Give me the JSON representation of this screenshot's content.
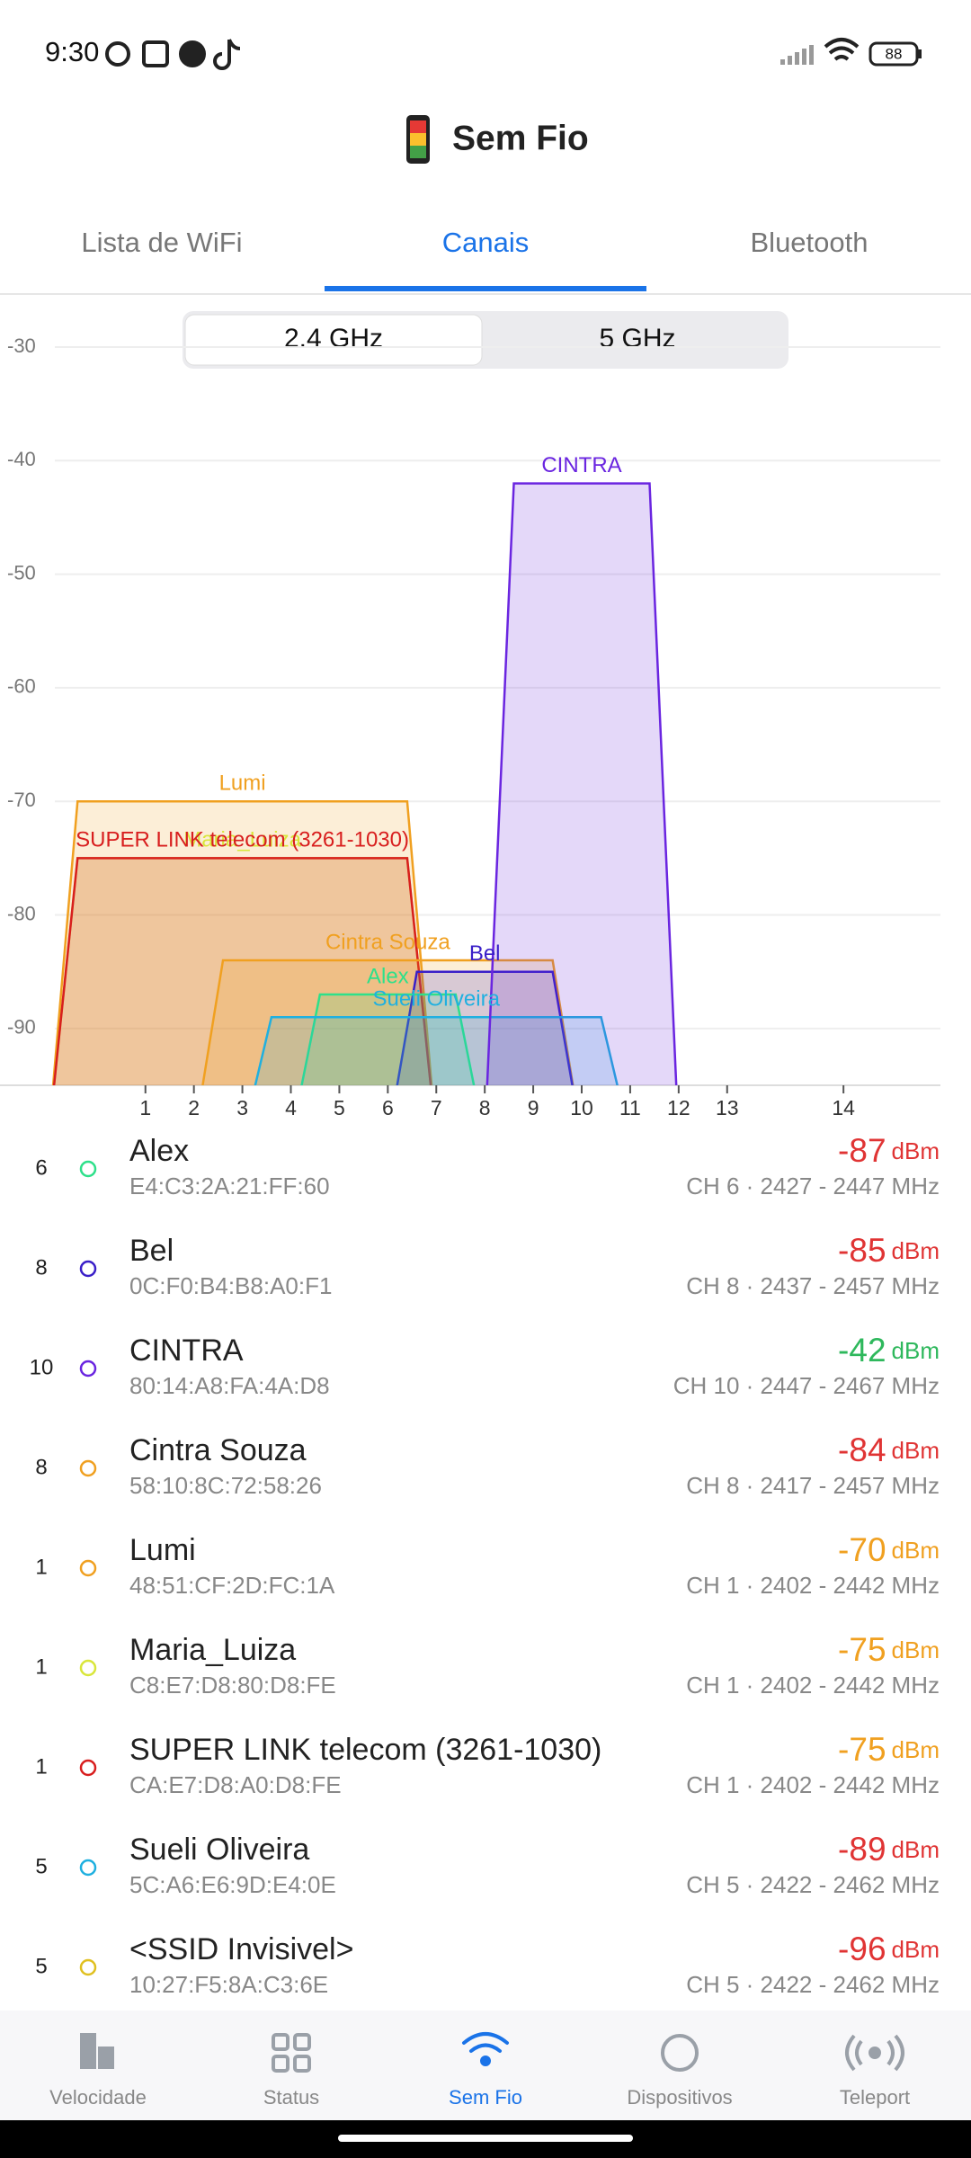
{
  "status_bar": {
    "time": "9:30",
    "battery": "88"
  },
  "app_title": "Sem Fio",
  "tabs": [
    "Lista de WiFi",
    "Canais",
    "Bluetooth"
  ],
  "active_tab": 1,
  "band_options": [
    "2.4 GHz",
    "5 GHz"
  ],
  "active_band": 0,
  "chart_data": {
    "type": "area",
    "xlim": [
      2397,
      2494
    ],
    "ylim": [
      -95,
      -30
    ],
    "yticks": [
      -30,
      -40,
      -50,
      -60,
      -70,
      -80,
      -90
    ],
    "xticks": [
      {
        "value": 2412,
        "label": "1"
      },
      {
        "value": 2417,
        "label": "2"
      },
      {
        "value": 2422,
        "label": "3"
      },
      {
        "value": 2427,
        "label": "4"
      },
      {
        "value": 2432,
        "label": "5"
      },
      {
        "value": 2437,
        "label": "6"
      },
      {
        "value": 2442,
        "label": "7"
      },
      {
        "value": 2447,
        "label": "8"
      },
      {
        "value": 2452,
        "label": "9"
      },
      {
        "value": 2457,
        "label": "10"
      },
      {
        "value": 2462,
        "label": "11"
      },
      {
        "value": 2467,
        "label": "12"
      },
      {
        "value": 2472,
        "label": "13"
      },
      {
        "value": 2484,
        "label": "14"
      }
    ],
    "grid": true,
    "series": [
      {
        "name": "Lumi",
        "color": "#f0a020",
        "value": -70,
        "x_range": [
          2402,
          2442
        ]
      },
      {
        "name": "Maria_Luiza",
        "color": "#d9e63a",
        "value": -75,
        "x_range": [
          2402,
          2442
        ]
      },
      {
        "name": "SUPER LINK telecom (3261-1030)",
        "color": "#d81e1e",
        "value": -75,
        "x_range": [
          2402,
          2442
        ]
      },
      {
        "name": "Cintra Souza",
        "color": "#f0a020",
        "value": -84,
        "x_range": [
          2417,
          2457
        ]
      },
      {
        "name": "Bel",
        "color": "#3a1fc8",
        "value": -85,
        "x_range": [
          2437,
          2457
        ]
      },
      {
        "name": "Alex",
        "color": "#2ee08a",
        "value": -87,
        "x_range": [
          2427,
          2447
        ]
      },
      {
        "name": "Sueli Oliveira",
        "color": "#1fb0e0",
        "value": -89,
        "x_range": [
          2422,
          2462
        ]
      },
      {
        "name": "CINTRA",
        "color": "#6a25e0",
        "value": -42,
        "x_range": [
          2447,
          2467
        ]
      }
    ]
  },
  "networks": [
    {
      "channel": "6",
      "color": "#2ee08a",
      "name": "Alex",
      "mac": "E4:C3:2A:21:FF:60",
      "signal": -87,
      "unit": "dBm",
      "signal_color": "#e03434",
      "band": "CH 6 · 2427 - 2447 MHz"
    },
    {
      "channel": "8",
      "color": "#3a1fc8",
      "name": "Bel",
      "mac": "0C:F0:B4:B8:A0:F1",
      "signal": -85,
      "unit": "dBm",
      "signal_color": "#e03434",
      "band": "CH 8 · 2437 - 2457 MHz"
    },
    {
      "channel": "10",
      "color": "#6a25e0",
      "name": "CINTRA",
      "mac": "80:14:A8:FA:4A:D8",
      "signal": -42,
      "unit": "dBm",
      "signal_color": "#2eb85c",
      "band": "CH 10 · 2447 - 2467 MHz"
    },
    {
      "channel": "8",
      "color": "#f0a020",
      "name": "Cintra Souza",
      "mac": "58:10:8C:72:58:26",
      "signal": -84,
      "unit": "dBm",
      "signal_color": "#e03434",
      "band": "CH 8 · 2417 - 2457 MHz"
    },
    {
      "channel": "1",
      "color": "#f0a020",
      "name": "Lumi",
      "mac": "48:51:CF:2D:FC:1A",
      "signal": -70,
      "unit": "dBm",
      "signal_color": "#f0a020",
      "band": "CH 1 · 2402 - 2442 MHz"
    },
    {
      "channel": "1",
      "color": "#d9e63a",
      "name": "Maria_Luiza",
      "mac": "C8:E7:D8:80:D8:FE",
      "signal": -75,
      "unit": "dBm",
      "signal_color": "#f0a020",
      "band": "CH 1 · 2402 - 2442 MHz"
    },
    {
      "channel": "1",
      "color": "#d81e1e",
      "name": "SUPER LINK telecom (3261-1030)",
      "mac": "CA:E7:D8:A0:D8:FE",
      "signal": -75,
      "unit": "dBm",
      "signal_color": "#f0a020",
      "band": "CH 1 · 2402 - 2442 MHz"
    },
    {
      "channel": "5",
      "color": "#1fb0e0",
      "name": "Sueli Oliveira",
      "mac": "5C:A6:E6:9D:E4:0E",
      "signal": -89,
      "unit": "dBm",
      "signal_color": "#e03434",
      "band": "CH 5 · 2422 - 2462 MHz"
    },
    {
      "channel": "5",
      "color": "#e0c020",
      "name": "<SSID Invisivel>",
      "mac": "10:27:F5:8A:C3:6E",
      "signal": -96,
      "unit": "dBm",
      "signal_color": "#e03434",
      "band": "CH 5 · 2422 - 2462 MHz"
    }
  ],
  "nav": {
    "items": [
      "Velocidade",
      "Status",
      "Sem Fio",
      "Dispositivos",
      "Teleport"
    ],
    "active": 2
  }
}
